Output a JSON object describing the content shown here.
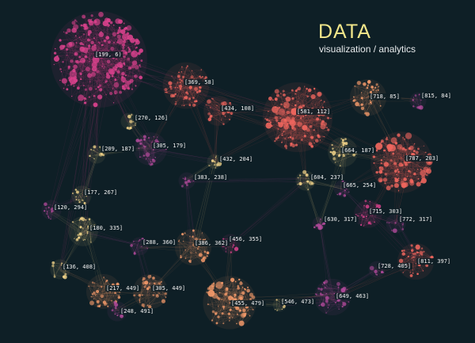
{
  "header": {
    "title": "DATA",
    "subtitle": "visualization / analytics"
  },
  "colors": {
    "background": "#0e1f26",
    "title": "#f1e68a",
    "magenta": "#d9418c",
    "coral": "#f0665e",
    "orange": "#f49a6a",
    "yellow": "#f4d58a",
    "violet": "#b14a9a"
  },
  "clusters": [
    {
      "label": "[199, 6)",
      "color": "magenta",
      "size": "xl"
    },
    {
      "label": "[369, 58]",
      "color": "coral",
      "size": "m"
    },
    {
      "label": "[434, 108]",
      "color": "coral",
      "size": "s"
    },
    {
      "label": "[581, 112]",
      "color": "coral",
      "size": "l"
    },
    {
      "label": "[718, 85]",
      "color": "orange",
      "size": "s"
    },
    {
      "label": "[815, 84]",
      "color": "violet",
      "size": "xs"
    },
    {
      "label": "[270, 126]",
      "color": "yellow",
      "size": "xs"
    },
    {
      "label": "[209, 187]",
      "color": "yellow",
      "size": "xs"
    },
    {
      "label": "[305, 179]",
      "color": "violet",
      "size": "s"
    },
    {
      "label": "[432, 204]",
      "color": "yellow",
      "size": "xs"
    },
    {
      "label": "[383, 238]",
      "color": "violet",
      "size": "xs"
    },
    {
      "label": "[664, 187]",
      "color": "yellow",
      "size": "s"
    },
    {
      "label": "[787, 203]",
      "color": "coral",
      "size": "l"
    },
    {
      "label": "[604, 237]",
      "color": "yellow",
      "size": "xs"
    },
    {
      "label": "[665, 254]",
      "color": "violet",
      "size": "xs"
    },
    {
      "label": "[177, 267]",
      "color": "yellow",
      "size": "xs"
    },
    {
      "label": "[120, 294]",
      "color": "violet",
      "size": "xs"
    },
    {
      "label": "[180, 335]",
      "color": "yellow",
      "size": "s"
    },
    {
      "label": "[630, 317]",
      "color": "violet",
      "size": "xs"
    },
    {
      "label": "[715, 303]",
      "color": "magenta",
      "size": "s"
    },
    {
      "label": "[772, 317]",
      "color": "violet",
      "size": "xs"
    },
    {
      "label": "[288, 360]",
      "color": "violet",
      "size": "xs"
    },
    {
      "label": "[386, 362]",
      "color": "orange",
      "size": "s"
    },
    {
      "label": "[456, 355]",
      "color": "magenta",
      "size": "xs"
    },
    {
      "label": "[811, 397]",
      "color": "coral",
      "size": "s"
    },
    {
      "label": "[136, 408]",
      "color": "yellow",
      "size": "xs"
    },
    {
      "label": "[728, 405]",
      "color": "violet",
      "size": "xs"
    },
    {
      "label": "[217, 449]",
      "color": "orange",
      "size": "s"
    },
    {
      "label": "[305, 449]",
      "color": "orange",
      "size": "s"
    },
    {
      "label": "[546, 473]",
      "color": "yellow",
      "size": "xs"
    },
    {
      "label": "[649, 463]",
      "color": "violet",
      "size": "s"
    },
    {
      "label": "[455, 479]",
      "color": "orange",
      "size": "m"
    },
    {
      "label": "[248, 491]",
      "color": "violet",
      "size": "xs"
    }
  ]
}
